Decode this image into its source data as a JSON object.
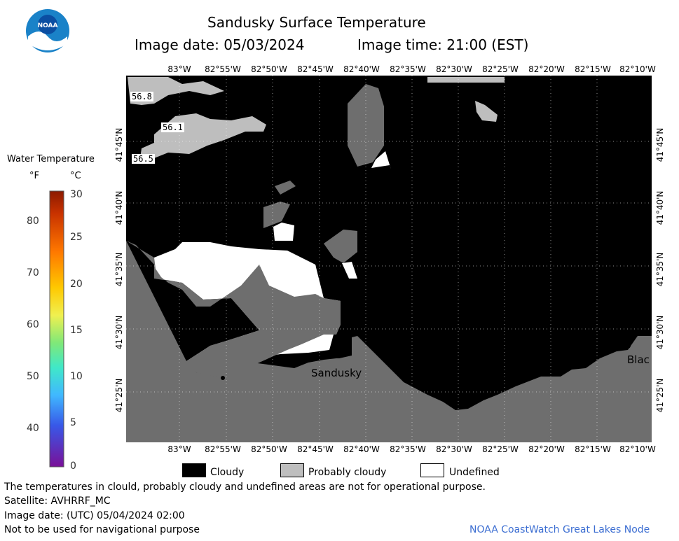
{
  "title": "Sandusky Surface Temperature",
  "image_date_label": "Image date: 05/03/2024",
  "image_time_label": "Image time: 21:00 (EST)",
  "logo_text": "NOAA",
  "colorbar": {
    "title": "Water Temperature",
    "unit_f": "°F",
    "unit_c": "°C",
    "f_ticks": [
      "80",
      "70",
      "60",
      "50",
      "40"
    ],
    "c_ticks": [
      "30",
      "25",
      "20",
      "15",
      "10",
      "5",
      "0"
    ]
  },
  "lon_ticks": [
    "83°W",
    "82°55'W",
    "82°50'W",
    "82°45'W",
    "82°40'W",
    "82°35'W",
    "82°30'W",
    "82°25'W",
    "82°20'W",
    "82°15'W",
    "82°10'W"
  ],
  "lat_ticks": [
    "41°45'N",
    "41°40'N",
    "41°35'N",
    "41°30'N",
    "41°25'N"
  ],
  "temp_labels": [
    "56.8",
    "56.1",
    "56.5"
  ],
  "place_labels": [
    "Sandusky",
    "Blac"
  ],
  "legend": {
    "cloudy": "Cloudy",
    "probably_cloudy": "Probably cloudy",
    "undefined": "Undefined"
  },
  "colors": {
    "land": "#6e6e6e",
    "cloudy": "#000000",
    "probably_cloudy": "#bebebe",
    "undefined": "#ffffff",
    "noaa_blue": "#1a82c8",
    "credit": "#3c6ed2"
  },
  "footer": {
    "disclaimer": "The temperatures in clould, probably cloudy and undefined areas are not for operational purpose.",
    "satellite": "Satellite: AVHRRF_MC",
    "utc_date": "Image date: (UTC) 05/04/2024  02:00",
    "nav_warning": "Not to be used for navigational purpose",
    "credit": "NOAA CoastWatch Great Lakes Node"
  }
}
